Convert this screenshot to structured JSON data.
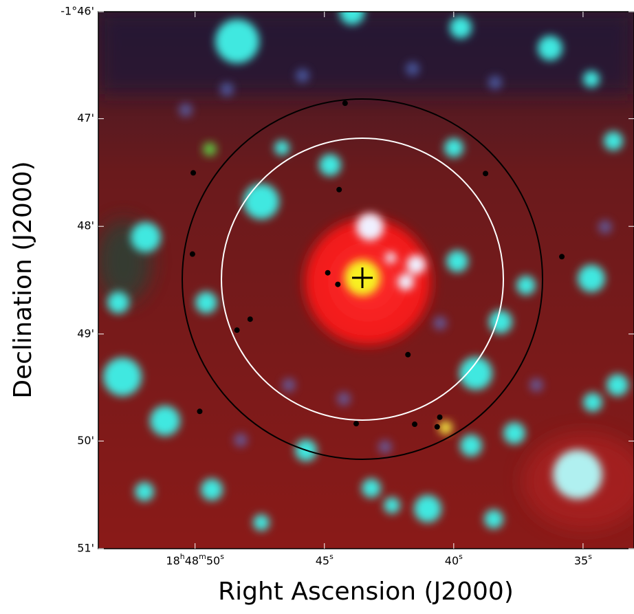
{
  "chart_data": {
    "type": "scatter",
    "xlabel": "Right Ascension (J2000)",
    "ylabel": "Declination (J2000)",
    "xlim": [
      67733.74,
      67713.03
    ],
    "ylim": [
      -1.85,
      -1.7667
    ],
    "xticks": [
      {
        "value": 67730,
        "label": "18h48m50s"
      },
      {
        "value": 67725,
        "label": "45s"
      },
      {
        "value": 67720,
        "label": "40s"
      },
      {
        "value": 67715,
        "label": "35s"
      }
    ],
    "yticks": [
      {
        "value": -1.7667,
        "label": "-1°46'"
      },
      {
        "value": -1.7833,
        "label": "47'"
      },
      {
        "value": -1.8,
        "label": "48'"
      },
      {
        "value": -1.8167,
        "label": "49'"
      },
      {
        "value": -1.8333,
        "label": "50'"
      },
      {
        "value": -1.85,
        "label": "51'"
      }
    ],
    "series": [
      {
        "color": "#000000",
        "x": [
          67724.2,
          67730.07,
          67724.43,
          67718.77,
          67730.1,
          67715.82,
          67724.87,
          67724.48,
          67727.87,
          67728.38,
          67721.77,
          67729.82,
          67723.77,
          67721.51,
          67720.54,
          67720.64
        ],
        "values": [
          -1.7809,
          -1.7917,
          -1.7943,
          -1.7918,
          -1.8043,
          -1.8047,
          -1.8072,
          -1.809,
          -1.8144,
          -1.8161,
          -1.8199,
          -1.8287,
          -1.8306,
          -1.8307,
          -1.8296,
          -1.8311
        ]
      }
    ]
  }
}
